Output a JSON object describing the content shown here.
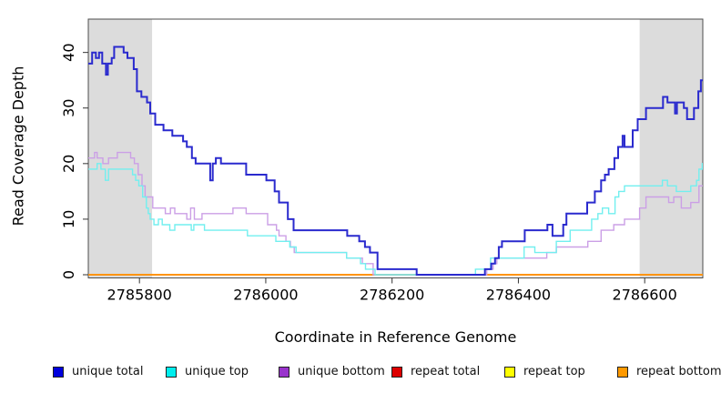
{
  "figure": {
    "x_axis_title": "Coordinate in Reference Genome",
    "y_axis_title": "Read Coverage Depth"
  },
  "chart_data": {
    "type": "line",
    "subtype": "step-after read coverage plot",
    "title": "",
    "xlabel": "Coordinate in Reference Genome",
    "ylabel": "Read Coverage Depth",
    "xlim": [
      2785719,
      2786692
    ],
    "ylim": [
      0,
      46
    ],
    "x_ticks": [
      2785800,
      2786000,
      2786200,
      2786400,
      2786600
    ],
    "y_ticks": [
      0,
      10,
      20,
      30,
      40
    ],
    "grid": false,
    "legend_position": "bottom",
    "plot_background": "#ffffff",
    "border_color": "#4d4d4d",
    "shaded_region_color": "#dcdcdc",
    "shaded_regions": [
      {
        "from": 2785719,
        "to": 2785820
      },
      {
        "from": 2786592,
        "to": 2786692
      }
    ],
    "series": [
      {
        "name": "repeat total",
        "legend_color": "#dd0000",
        "line_color": "#dd2222",
        "line_width": 1.5,
        "points": [
          [
            2785719,
            0
          ]
        ]
      },
      {
        "name": "repeat top",
        "legend_color": "#ffff00",
        "line_color": "#ffee33",
        "line_width": 1.5,
        "points": [
          [
            2785719,
            0
          ]
        ]
      },
      {
        "name": "repeat bottom",
        "legend_color": "#ff9900",
        "line_color": "#ff9412",
        "line_width": 2,
        "points": [
          [
            2785719,
            0
          ]
        ]
      },
      {
        "name": "unique bottom",
        "legend_color": "#9933cc",
        "line_color": "#cb9fe6",
        "line_width": 1.4,
        "points": [
          [
            2785719,
            21
          ],
          [
            2785729,
            22
          ],
          [
            2785733,
            21
          ],
          [
            2785742,
            20
          ],
          [
            2785751,
            21
          ],
          [
            2785765,
            22
          ],
          [
            2785786,
            21
          ],
          [
            2785792,
            20
          ],
          [
            2785798,
            18
          ],
          [
            2785804,
            16
          ],
          [
            2785809,
            14
          ],
          [
            2785821,
            12
          ],
          [
            2785841,
            11
          ],
          [
            2785849,
            12
          ],
          [
            2785856,
            11
          ],
          [
            2785875,
            10
          ],
          [
            2785881,
            12
          ],
          [
            2785887,
            10
          ],
          [
            2785899,
            11
          ],
          [
            2785948,
            12
          ],
          [
            2785969,
            11
          ],
          [
            2786003,
            9
          ],
          [
            2786017,
            8
          ],
          [
            2786021,
            7
          ],
          [
            2786032,
            6
          ],
          [
            2786039,
            5
          ],
          [
            2786045,
            4
          ],
          [
            2786128,
            3
          ],
          [
            2786153,
            2
          ],
          [
            2786170,
            0
          ],
          [
            2786350,
            1
          ],
          [
            2786360,
            2
          ],
          [
            2786366,
            3
          ],
          [
            2786445,
            4
          ],
          [
            2786460,
            5
          ],
          [
            2786510,
            6
          ],
          [
            2786531,
            8
          ],
          [
            2786551,
            9
          ],
          [
            2786568,
            10
          ],
          [
            2786592,
            12
          ],
          [
            2786602,
            14
          ],
          [
            2786638,
            13
          ],
          [
            2786646,
            14
          ],
          [
            2786658,
            12
          ],
          [
            2786673,
            13
          ],
          [
            2786686,
            16
          ]
        ]
      },
      {
        "name": "unique top",
        "legend_color": "#00eeee",
        "line_color": "#72efef",
        "line_width": 1.4,
        "points": [
          [
            2785719,
            19
          ],
          [
            2785733,
            20
          ],
          [
            2785739,
            19
          ],
          [
            2785746,
            17
          ],
          [
            2785751,
            19
          ],
          [
            2785789,
            18
          ],
          [
            2785794,
            17
          ],
          [
            2785799,
            16
          ],
          [
            2785805,
            14
          ],
          [
            2785811,
            12
          ],
          [
            2785814,
            11
          ],
          [
            2785817,
            10
          ],
          [
            2785823,
            9
          ],
          [
            2785830,
            10
          ],
          [
            2785836,
            9
          ],
          [
            2785848,
            8
          ],
          [
            2785856,
            9
          ],
          [
            2785882,
            8
          ],
          [
            2785886,
            9
          ],
          [
            2785903,
            8
          ],
          [
            2785971,
            7
          ],
          [
            2786016,
            6
          ],
          [
            2786038,
            5
          ],
          [
            2786048,
            4
          ],
          [
            2786128,
            3
          ],
          [
            2786150,
            2
          ],
          [
            2786158,
            1
          ],
          [
            2786173,
            0
          ],
          [
            2786332,
            1
          ],
          [
            2786356,
            3
          ],
          [
            2786409,
            5
          ],
          [
            2786426,
            4
          ],
          [
            2786460,
            6
          ],
          [
            2786482,
            8
          ],
          [
            2786516,
            10
          ],
          [
            2786526,
            11
          ],
          [
            2786533,
            12
          ],
          [
            2786543,
            11
          ],
          [
            2786553,
            14
          ],
          [
            2786559,
            15
          ],
          [
            2786568,
            16
          ],
          [
            2786628,
            17
          ],
          [
            2786636,
            16
          ],
          [
            2786650,
            15
          ],
          [
            2786673,
            16
          ],
          [
            2786682,
            17
          ],
          [
            2786686,
            19
          ],
          [
            2786691,
            20
          ]
        ]
      },
      {
        "name": "unique total",
        "legend_color": "#0000dd",
        "line_color": "#2a2ace",
        "line_width": 2,
        "points": [
          [
            2785719,
            38
          ],
          [
            2785725,
            40
          ],
          [
            2785731,
            39
          ],
          [
            2785736,
            40
          ],
          [
            2785741,
            38
          ],
          [
            2785747,
            36
          ],
          [
            2785750,
            38
          ],
          [
            2785756,
            39
          ],
          [
            2785760,
            41
          ],
          [
            2785775,
            40
          ],
          [
            2785781,
            39
          ],
          [
            2785791,
            37
          ],
          [
            2785796,
            33
          ],
          [
            2785803,
            32
          ],
          [
            2785812,
            31
          ],
          [
            2785817,
            29
          ],
          [
            2785825,
            27
          ],
          [
            2785838,
            26
          ],
          [
            2785852,
            25
          ],
          [
            2785869,
            24
          ],
          [
            2785875,
            23
          ],
          [
            2785883,
            21
          ],
          [
            2785889,
            20
          ],
          [
            2785912,
            17
          ],
          [
            2785916,
            20
          ],
          [
            2785921,
            21
          ],
          [
            2785929,
            20
          ],
          [
            2785969,
            18
          ],
          [
            2786001,
            17
          ],
          [
            2786014,
            15
          ],
          [
            2786021,
            13
          ],
          [
            2786035,
            10
          ],
          [
            2786044,
            8
          ],
          [
            2786129,
            7
          ],
          [
            2786148,
            6
          ],
          [
            2786157,
            5
          ],
          [
            2786165,
            4
          ],
          [
            2786177,
            1
          ],
          [
            2786239,
            0
          ],
          [
            2786347,
            1
          ],
          [
            2786357,
            2
          ],
          [
            2786363,
            3
          ],
          [
            2786369,
            5
          ],
          [
            2786374,
            6
          ],
          [
            2786410,
            8
          ],
          [
            2786446,
            9
          ],
          [
            2786454,
            7
          ],
          [
            2786471,
            9
          ],
          [
            2786476,
            11
          ],
          [
            2786509,
            13
          ],
          [
            2786521,
            15
          ],
          [
            2786531,
            17
          ],
          [
            2786537,
            18
          ],
          [
            2786543,
            19
          ],
          [
            2786552,
            21
          ],
          [
            2786558,
            23
          ],
          [
            2786565,
            25
          ],
          [
            2786568,
            23
          ],
          [
            2786581,
            26
          ],
          [
            2786589,
            28
          ],
          [
            2786602,
            30
          ],
          [
            2786629,
            32
          ],
          [
            2786636,
            31
          ],
          [
            2786648,
            29
          ],
          [
            2786651,
            31
          ],
          [
            2786662,
            30
          ],
          [
            2786667,
            28
          ],
          [
            2786678,
            30
          ],
          [
            2786685,
            33
          ],
          [
            2786689,
            35
          ]
        ]
      }
    ],
    "legend_order": [
      "unique total",
      "unique top",
      "unique bottom",
      "repeat total",
      "repeat top",
      "repeat bottom"
    ]
  }
}
